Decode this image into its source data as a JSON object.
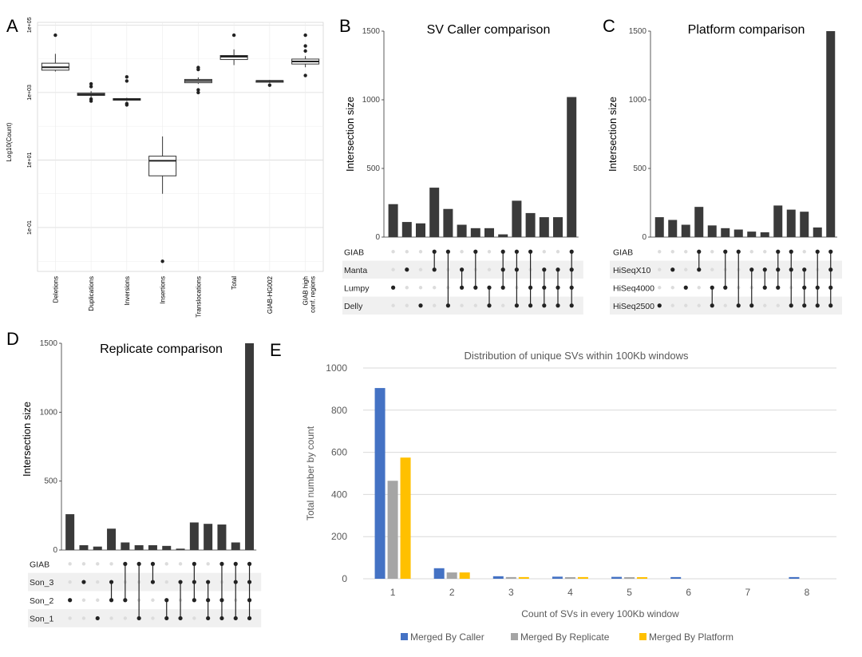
{
  "colors": {
    "bar": "#3a3a3a",
    "caller": "#4472c4",
    "replicate": "#a5a5a5",
    "platform": "#ffc000",
    "grid": "#d9d9d9",
    "stripe": "#f0f0f0",
    "dot_off": "#dcdcdc"
  },
  "chart_data": [
    {
      "panel": "A",
      "type": "box",
      "ylabel": "Log10(Count)",
      "yscale": "log",
      "ytick_labels": [
        "1e-01",
        "1e+01",
        "1e+03",
        "1e+05"
      ],
      "ytick_values": [
        0.1,
        10,
        1000,
        100000
      ],
      "categories": [
        "Deletions",
        "Duplications",
        "Inversions",
        "Insertions",
        "Translocations",
        "Total",
        "GIAB-HG002",
        "GIAB high conf. regions"
      ],
      "boxes": [
        {
          "low": 4200,
          "q1": 4600,
          "median": 5600,
          "q3": 7400,
          "high": 14000,
          "outliers": [
            50000
          ]
        },
        {
          "low": 720,
          "q1": 820,
          "median": 880,
          "q3": 960,
          "high": 1100,
          "outliers": [
            560,
            640,
            1500,
            1800
          ]
        },
        {
          "low": 560,
          "q1": 600,
          "median": 630,
          "q3": 660,
          "high": 700,
          "outliers": [
            430,
            470,
            2200,
            2900
          ]
        },
        {
          "low": 1,
          "q1": 3.4,
          "median": 9.5,
          "q3": 13,
          "high": 50,
          "outliers": [
            0.01
          ]
        },
        {
          "low": 1800,
          "q1": 1950,
          "median": 2200,
          "q3": 2450,
          "high": 2800,
          "outliers": [
            1000,
            1200,
            4800,
            5500
          ]
        },
        {
          "low": 6500,
          "q1": 9500,
          "median": 11500,
          "q3": 12500,
          "high": 19000,
          "outliers": [
            50000
          ]
        },
        {
          "low": 1900,
          "q1": 2050,
          "median": 2200,
          "q3": 2250,
          "high": 2350,
          "outliers": [
            1650
          ]
        },
        {
          "low": 5600,
          "q1": 7000,
          "median": 8300,
          "q3": 9800,
          "high": 12000,
          "outliers": [
            3200,
            17000,
            24000,
            50000
          ]
        }
      ]
    },
    {
      "panel": "B",
      "type": "upset",
      "title": "SV Caller comparison",
      "ylabel": "Intersection size",
      "ytick_labels": [
        "0",
        "500",
        "1000",
        "1500"
      ],
      "ytick_values": [
        0,
        500,
        1000,
        1500
      ],
      "ymax": 1500,
      "sets": [
        "GIAB",
        "Manta",
        "Lumpy",
        "Delly"
      ],
      "values": [
        240,
        110,
        100,
        360,
        205,
        90,
        65,
        65,
        20,
        265,
        175,
        145,
        145,
        1020
      ],
      "combos": [
        [
          2
        ],
        [
          1
        ],
        [
          3
        ],
        [
          0,
          1
        ],
        [
          0,
          3
        ],
        [
          1,
          2
        ],
        [
          0,
          2
        ],
        [
          2,
          3
        ],
        [
          0,
          1,
          2
        ],
        [
          0,
          1,
          3
        ],
        [
          0,
          2,
          3
        ],
        [
          1,
          2,
          3
        ],
        [
          1,
          2,
          3
        ],
        [
          0,
          1,
          2,
          3
        ]
      ]
    },
    {
      "panel": "C",
      "type": "upset",
      "title": "Platform comparison",
      "ylabel": "Intersection size",
      "ytick_labels": [
        "0",
        "500",
        "1000",
        "1500"
      ],
      "ytick_values": [
        0,
        500,
        1000,
        1500
      ],
      "ymax": 1500,
      "sets": [
        "GIAB",
        "HiSeqX10",
        "HiSeq4000",
        "HiSeq2500"
      ],
      "values": [
        145,
        125,
        90,
        220,
        85,
        65,
        55,
        40,
        35,
        230,
        200,
        185,
        70,
        1500
      ],
      "combos": [
        [
          3
        ],
        [
          1
        ],
        [
          2
        ],
        [
          0,
          1
        ],
        [
          2,
          3
        ],
        [
          0,
          2
        ],
        [
          0,
          3
        ],
        [
          1,
          3
        ],
        [
          1,
          2
        ],
        [
          0,
          1,
          2
        ],
        [
          0,
          1,
          3
        ],
        [
          1,
          2,
          3
        ],
        [
          0,
          2,
          3
        ],
        [
          0,
          1,
          2,
          3
        ]
      ]
    },
    {
      "panel": "D",
      "type": "upset",
      "title": "Replicate comparison",
      "ylabel": "Intersection size",
      "ytick_labels": [
        "0",
        "500",
        "1000",
        "1500"
      ],
      "ytick_values": [
        0,
        500,
        1000,
        1500
      ],
      "ymax": 1500,
      "sets": [
        "GIAB",
        "Son_3",
        "Son_2",
        "Son_1"
      ],
      "values": [
        260,
        35,
        25,
        155,
        55,
        35,
        35,
        30,
        10,
        200,
        190,
        185,
        55,
        1500
      ],
      "combos": [
        [
          2
        ],
        [
          1
        ],
        [
          3
        ],
        [
          1,
          2
        ],
        [
          0,
          2
        ],
        [
          0,
          3
        ],
        [
          0,
          1
        ],
        [
          2,
          3
        ],
        [
          1,
          3
        ],
        [
          0,
          1,
          2
        ],
        [
          1,
          2,
          3
        ],
        [
          0,
          2,
          3
        ],
        [
          0,
          1,
          3
        ],
        [
          0,
          1,
          2,
          3
        ]
      ]
    },
    {
      "panel": "E",
      "type": "bar",
      "title": "Distribution of unique SVs within 100Kb windows",
      "xlabel": "Count of SVs in every 100Kb window",
      "ylabel": "Total number by count",
      "categories": [
        "1",
        "2",
        "3",
        "4",
        "5",
        "6",
        "7",
        "8"
      ],
      "ylim": [
        0,
        1000
      ],
      "ytick_values": [
        0,
        200,
        400,
        600,
        800,
        1000
      ],
      "ytick_labels": [
        "0",
        "200",
        "400",
        "600",
        "800",
        "1000"
      ],
      "series": [
        {
          "name": "Merged By Caller",
          "values": [
            905,
            50,
            12,
            10,
            9,
            8,
            0,
            8
          ]
        },
        {
          "name": "Merged By Replicate",
          "values": [
            465,
            30,
            8,
            7,
            6,
            0,
            0,
            0
          ]
        },
        {
          "name": "Merged By Platform",
          "values": [
            575,
            30,
            8,
            8,
            7,
            0,
            0,
            0
          ]
        }
      ]
    }
  ]
}
